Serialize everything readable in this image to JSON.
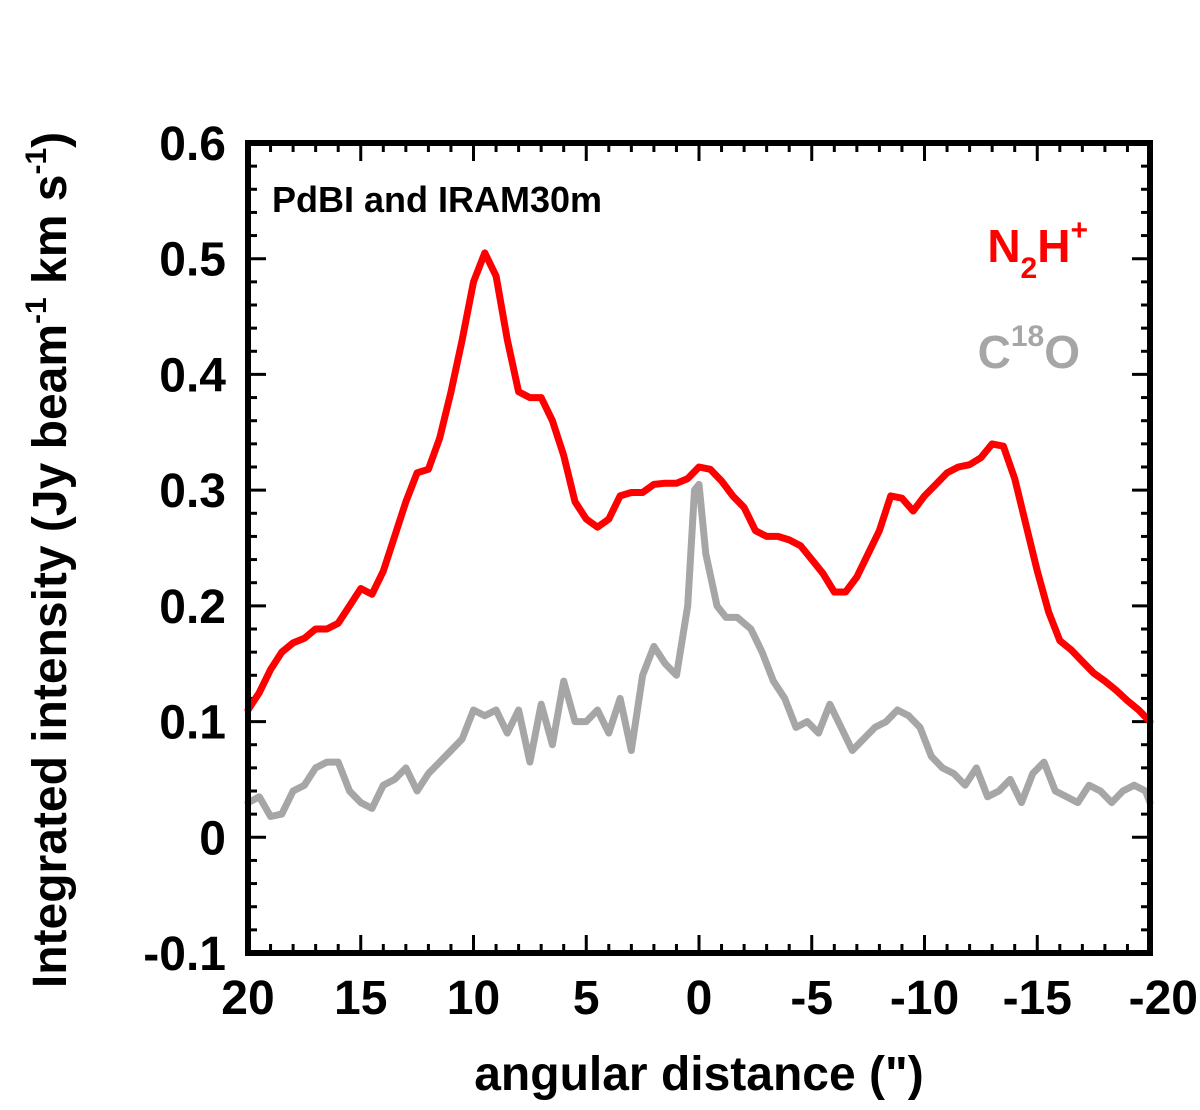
{
  "chart_data": {
    "type": "line",
    "title": "",
    "xlabel": "angular distance (\")",
    "ylabel": "Integrated intensity (Jy beam",
    "ylabel_sup1": "-1",
    "ylabel_mid": " km s",
    "ylabel_sup2": "-1",
    "ylabel_end": ")",
    "xlim": [
      20,
      -20
    ],
    "ylim": [
      -0.1,
      0.6
    ],
    "x_ticks": [
      "20",
      "15",
      "10",
      "5",
      "0",
      "-5",
      "-10",
      "-15",
      "-20"
    ],
    "y_ticks": [
      "-0.1",
      "0",
      "0.1",
      "0.2",
      "0.3",
      "0.4",
      "0.5",
      "0.6"
    ],
    "grid": false,
    "annotation": "PdBI and IRAM30m",
    "series": [
      {
        "id": "n2h",
        "name": "N2H+",
        "legend_base": "N",
        "legend_sub": "2",
        "legend_mid": "H",
        "legend_sup": "+",
        "legend_end": "",
        "color": "#ff0000",
        "x": [
          20,
          19.5,
          19,
          18.5,
          18,
          17.5,
          17,
          16.5,
          16,
          15.5,
          15,
          14.5,
          14,
          13.5,
          13,
          12.5,
          12,
          11.5,
          11,
          10.5,
          10,
          9.5,
          9,
          8.5,
          8,
          7.5,
          7,
          6.5,
          6,
          5.5,
          5,
          4.5,
          4,
          3.5,
          3,
          2.5,
          2,
          1.5,
          1,
          0.5,
          0,
          -0.5,
          -1,
          -1.5,
          -2,
          -2.5,
          -3,
          -3.5,
          -4,
          -4.5,
          -5,
          -5.5,
          -6,
          -6.5,
          -7,
          -7.5,
          -8,
          -8.5,
          -9,
          -9.5,
          -10,
          -10.5,
          -11,
          -11.5,
          -12,
          -12.5,
          -13,
          -13.5,
          -14,
          -14.5,
          -15,
          -15.5,
          -16,
          -16.5,
          -17,
          -17.5,
          -18,
          -18.5,
          -19,
          -19.5,
          -20
        ],
        "y": [
          0.11,
          0.125,
          0.145,
          0.16,
          0.168,
          0.172,
          0.18,
          0.18,
          0.185,
          0.2,
          0.215,
          0.21,
          0.23,
          0.26,
          0.29,
          0.315,
          0.318,
          0.345,
          0.385,
          0.43,
          0.48,
          0.505,
          0.485,
          0.43,
          0.385,
          0.38,
          0.38,
          0.36,
          0.33,
          0.29,
          0.275,
          0.268,
          0.275,
          0.295,
          0.298,
          0.298,
          0.305,
          0.306,
          0.306,
          0.31,
          0.32,
          0.318,
          0.308,
          0.295,
          0.285,
          0.265,
          0.26,
          0.26,
          0.257,
          0.252,
          0.24,
          0.228,
          0.212,
          0.212,
          0.225,
          0.245,
          0.265,
          0.295,
          0.293,
          0.282,
          0.295,
          0.305,
          0.315,
          0.32,
          0.322,
          0.328,
          0.34,
          0.338,
          0.31,
          0.27,
          0.23,
          0.195,
          0.17,
          0.162,
          0.152,
          0.142,
          0.135,
          0.127,
          0.118,
          0.11,
          0.1
        ]
      },
      {
        "id": "c18o",
        "name": "C18O",
        "legend_base": "C",
        "legend_sub": "",
        "legend_mid": "",
        "legend_sup": "18",
        "legend_end": "O",
        "color": "#a6a6a6",
        "x": [
          20,
          19.5,
          19,
          18.5,
          18,
          17.5,
          17,
          16.5,
          16,
          15.5,
          15,
          14.5,
          14,
          13.5,
          13,
          12.5,
          12,
          11.5,
          11,
          10.5,
          10,
          9.5,
          9,
          8.5,
          8,
          7.5,
          7,
          6.5,
          6,
          5.5,
          5,
          4.5,
          4,
          3.5,
          3,
          2.5,
          2,
          1.5,
          1,
          0.5,
          0.2,
          0,
          -0.3,
          -0.8,
          -1.2,
          -1.7,
          -2.3,
          -2.8,
          -3.3,
          -3.8,
          -4.3,
          -4.8,
          -5.3,
          -5.8,
          -6.3,
          -6.8,
          -7.3,
          -7.8,
          -8.3,
          -8.8,
          -9.3,
          -9.8,
          -10.3,
          -10.8,
          -11.3,
          -11.8,
          -12.3,
          -12.8,
          -13.3,
          -13.8,
          -14.3,
          -14.8,
          -15.3,
          -15.8,
          -16.3,
          -16.8,
          -17.3,
          -17.8,
          -18.3,
          -18.8,
          -19.3,
          -19.8,
          -20
        ],
        "y": [
          0.03,
          0.035,
          0.018,
          0.02,
          0.04,
          0.045,
          0.06,
          0.065,
          0.065,
          0.04,
          0.03,
          0.025,
          0.045,
          0.05,
          0.06,
          0.04,
          0.055,
          0.065,
          0.075,
          0.085,
          0.11,
          0.105,
          0.11,
          0.09,
          0.11,
          0.065,
          0.115,
          0.08,
          0.135,
          0.1,
          0.1,
          0.11,
          0.09,
          0.12,
          0.075,
          0.14,
          0.165,
          0.15,
          0.14,
          0.2,
          0.3,
          0.305,
          0.245,
          0.2,
          0.19,
          0.19,
          0.18,
          0.16,
          0.135,
          0.12,
          0.095,
          0.1,
          0.09,
          0.115,
          0.095,
          0.075,
          0.085,
          0.095,
          0.1,
          0.11,
          0.105,
          0.095,
          0.07,
          0.06,
          0.055,
          0.045,
          0.06,
          0.035,
          0.04,
          0.05,
          0.03,
          0.055,
          0.065,
          0.04,
          0.035,
          0.03,
          0.045,
          0.04,
          0.03,
          0.04,
          0.045,
          0.04,
          0.03
        ]
      }
    ]
  }
}
